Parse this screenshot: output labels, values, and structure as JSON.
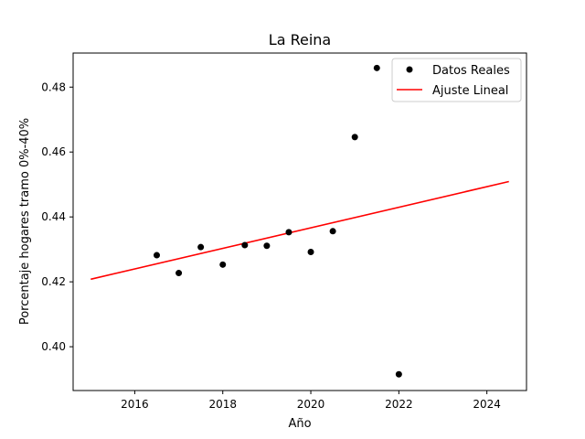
{
  "chart_data": {
    "type": "scatter",
    "title": "La Reina",
    "xlabel": "Año",
    "ylabel": "Porcentaje hogares tramo 0%-40%",
    "xlim": [
      2014.6,
      2024.9
    ],
    "ylim": [
      0.3865,
      0.4905
    ],
    "x_ticks": [
      2016,
      2018,
      2020,
      2022,
      2024
    ],
    "x_tick_labels": [
      "2016",
      "2018",
      "2020",
      "2022",
      "2024"
    ],
    "y_ticks": [
      0.4,
      0.42,
      0.44,
      0.46,
      0.48
    ],
    "y_tick_labels": [
      "0.40",
      "0.42",
      "0.44",
      "0.46",
      "0.48"
    ],
    "grid": false,
    "legend_position": "top-right",
    "series": [
      {
        "name": "Datos Reales",
        "kind": "scatter",
        "color": "#000000",
        "x": [
          2016.5,
          2017.0,
          2017.5,
          2018.0,
          2018.5,
          2019.0,
          2019.5,
          2020.0,
          2020.5,
          2021.0,
          2021.5,
          2022.0
        ],
        "y": [
          0.4282,
          0.4227,
          0.4307,
          0.4253,
          0.4313,
          0.4311,
          0.4353,
          0.4292,
          0.4356,
          0.4646,
          0.4859,
          0.3915
        ]
      },
      {
        "name": "Ajuste Lineal",
        "kind": "line",
        "color": "#ff0000",
        "x": [
          2015.0,
          2024.5
        ],
        "y": [
          0.4208,
          0.4509
        ]
      }
    ]
  }
}
